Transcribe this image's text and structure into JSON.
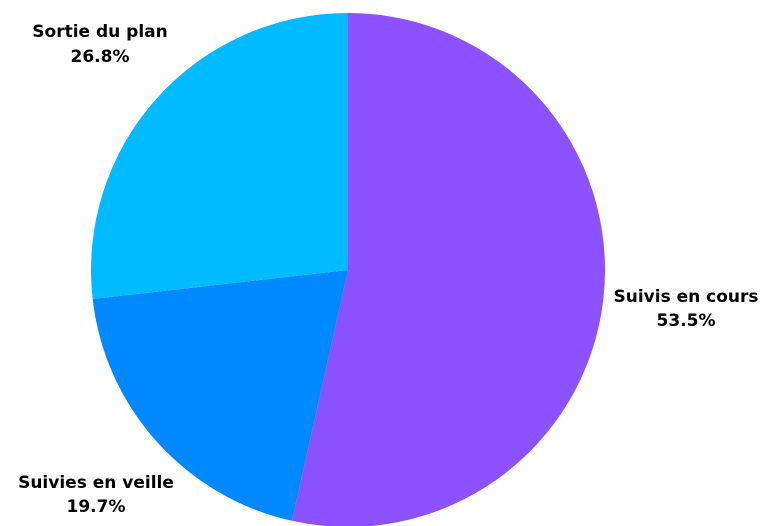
{
  "chart_data": {
    "type": "pie",
    "title": "",
    "slices": [
      {
        "label": "Suivis en cours",
        "value": 53.5,
        "value_label": "53.5%",
        "color": "#8c52ff"
      },
      {
        "label": "Suivies en veille",
        "value": 19.7,
        "value_label": "19.7%",
        "color": "#0088ff"
      },
      {
        "label": "Sortie du plan",
        "value": 26.8,
        "value_label": "26.8%",
        "color": "#00bbff"
      }
    ],
    "start_angle": "12 o'clock",
    "direction": "clockwise",
    "legend": "none",
    "labels_placement": "outside"
  }
}
